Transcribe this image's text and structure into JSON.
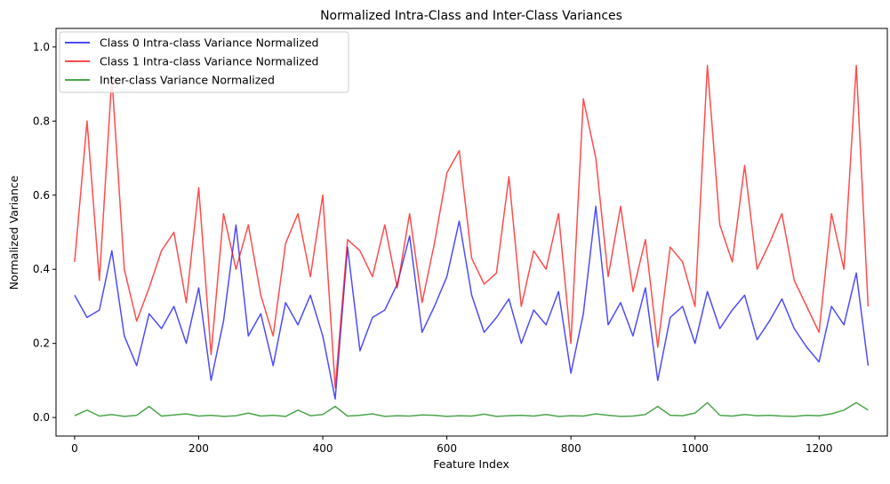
{
  "chart_data": {
    "type": "line",
    "title": "Normalized Intra-Class and Inter-Class Variances",
    "xlabel": "Feature Index",
    "ylabel": "Normalized Variance",
    "xlim": [
      -30,
      1310
    ],
    "ylim": [
      -0.05,
      1.05
    ],
    "xticks": [
      0,
      200,
      400,
      600,
      800,
      1000,
      1200
    ],
    "yticks": [
      0.0,
      0.2,
      0.4,
      0.6,
      0.8,
      1.0
    ],
    "xtick_labels": [
      "0",
      "200",
      "400",
      "600",
      "800",
      "1000",
      "1200"
    ],
    "ytick_labels": [
      "0.0",
      "0.2",
      "0.4",
      "0.6",
      "0.8",
      "1.0"
    ],
    "legend_position": "top-left",
    "grid": false,
    "x": [
      0,
      20,
      40,
      60,
      80,
      100,
      120,
      140,
      160,
      180,
      200,
      220,
      240,
      260,
      280,
      300,
      320,
      340,
      360,
      380,
      400,
      420,
      440,
      460,
      480,
      500,
      520,
      540,
      560,
      580,
      600,
      620,
      640,
      660,
      680,
      700,
      720,
      740,
      760,
      780,
      800,
      820,
      840,
      860,
      880,
      900,
      920,
      940,
      960,
      980,
      1000,
      1020,
      1040,
      1060,
      1080,
      1100,
      1120,
      1140,
      1160,
      1180,
      1200,
      1220,
      1240,
      1260,
      1279
    ],
    "series": [
      {
        "name": "Class 0 Intra-class Variance Normalized",
        "color": "#0000ff",
        "values": [
          0.33,
          0.27,
          0.29,
          0.45,
          0.22,
          0.14,
          0.28,
          0.24,
          0.3,
          0.2,
          0.35,
          0.1,
          0.26,
          0.52,
          0.22,
          0.28,
          0.14,
          0.31,
          0.25,
          0.33,
          0.22,
          0.05,
          0.46,
          0.18,
          0.27,
          0.29,
          0.36,
          0.49,
          0.23,
          0.3,
          0.38,
          0.53,
          0.33,
          0.23,
          0.27,
          0.32,
          0.2,
          0.29,
          0.25,
          0.34,
          0.12,
          0.28,
          0.57,
          0.25,
          0.31,
          0.22,
          0.35,
          0.1,
          0.27,
          0.3,
          0.2,
          0.34,
          0.24,
          0.29,
          0.33,
          0.21,
          0.26,
          0.32,
          0.24,
          0.19,
          0.15,
          0.3,
          0.25,
          0.39,
          0.14
        ]
      },
      {
        "name": "Class 1 Intra-class Variance Normalized",
        "color": "#ff0000",
        "values": [
          0.42,
          0.8,
          0.37,
          0.92,
          0.4,
          0.26,
          0.35,
          0.45,
          0.5,
          0.31,
          0.62,
          0.17,
          0.55,
          0.4,
          0.52,
          0.33,
          0.22,
          0.47,
          0.55,
          0.38,
          0.6,
          0.08,
          0.48,
          0.45,
          0.38,
          0.52,
          0.35,
          0.55,
          0.31,
          0.47,
          0.66,
          0.72,
          0.43,
          0.36,
          0.39,
          0.65,
          0.3,
          0.45,
          0.4,
          0.55,
          0.2,
          0.86,
          0.7,
          0.38,
          0.57,
          0.34,
          0.48,
          0.19,
          0.46,
          0.42,
          0.3,
          0.95,
          0.52,
          0.42,
          0.68,
          0.4,
          0.47,
          0.55,
          0.37,
          0.3,
          0.23,
          0.55,
          0.4,
          0.95,
          0.3
        ]
      },
      {
        "name": "Inter-class Variance Normalized",
        "color": "#008000",
        "values": [
          0.005,
          0.02,
          0.004,
          0.008,
          0.003,
          0.006,
          0.03,
          0.004,
          0.007,
          0.01,
          0.004,
          0.006,
          0.003,
          0.005,
          0.012,
          0.004,
          0.006,
          0.003,
          0.02,
          0.005,
          0.008,
          0.03,
          0.004,
          0.006,
          0.01,
          0.003,
          0.005,
          0.004,
          0.007,
          0.006,
          0.003,
          0.005,
          0.004,
          0.009,
          0.003,
          0.005,
          0.006,
          0.004,
          0.008,
          0.003,
          0.005,
          0.004,
          0.01,
          0.006,
          0.003,
          0.004,
          0.008,
          0.03,
          0.006,
          0.005,
          0.012,
          0.04,
          0.006,
          0.004,
          0.008,
          0.005,
          0.006,
          0.004,
          0.003,
          0.006,
          0.005,
          0.01,
          0.02,
          0.04,
          0.02
        ]
      }
    ]
  }
}
